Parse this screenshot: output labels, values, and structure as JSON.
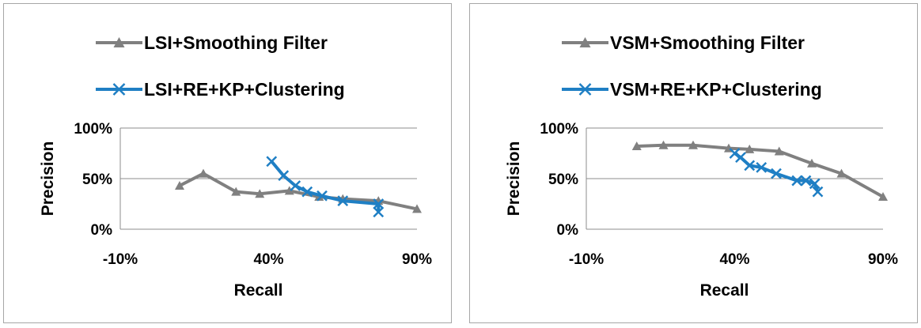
{
  "chart_data": [
    {
      "type": "line",
      "xlabel": "Recall",
      "ylabel": "Precision",
      "xlim": [
        -10,
        90
      ],
      "ylim": [
        0,
        100
      ],
      "x_ticks": [
        "-10%",
        "40%",
        "90%"
      ],
      "y_ticks": [
        "0%",
        "50%",
        "100%"
      ],
      "grid": "horizontal",
      "legend_position": "top",
      "series": [
        {
          "name": "LSI+Smoothing Filter",
          "color": "#808080",
          "marker": "triangle",
          "x": [
            10,
            18,
            29,
            37,
            47,
            57,
            65,
            77,
            90
          ],
          "y": [
            43,
            55,
            37,
            35,
            38,
            32,
            30,
            28,
            20
          ]
        },
        {
          "name": "LSI+RE+KP+Clustering",
          "color": "#1f7fc4",
          "marker": "x",
          "x": [
            41,
            45,
            49,
            53,
            58,
            65,
            77,
            77
          ],
          "y": [
            67,
            53,
            43,
            37,
            33,
            28,
            25,
            17
          ]
        }
      ]
    },
    {
      "type": "line",
      "xlabel": "Recall",
      "ylabel": "Precision",
      "xlim": [
        -10,
        90
      ],
      "ylim": [
        0,
        100
      ],
      "x_ticks": [
        "-10%",
        "40%",
        "90%"
      ],
      "y_ticks": [
        "0%",
        "50%",
        "100%"
      ],
      "grid": "horizontal",
      "legend_position": "top",
      "series": [
        {
          "name": "VSM+Smoothing Filter",
          "color": "#808080",
          "marker": "triangle",
          "x": [
            7,
            16,
            26,
            38,
            45,
            55,
            66,
            76,
            90
          ],
          "y": [
            82,
            83,
            83,
            80,
            79,
            77,
            65,
            55,
            32
          ]
        },
        {
          "name": "VSM+RE+KP+Clustering",
          "color": "#1f7fc4",
          "marker": "x",
          "x": [
            40,
            42,
            45,
            49,
            54,
            61,
            64,
            67,
            68
          ],
          "y": [
            75,
            71,
            63,
            61,
            55,
            48,
            48,
            45,
            37
          ]
        }
      ]
    }
  ]
}
